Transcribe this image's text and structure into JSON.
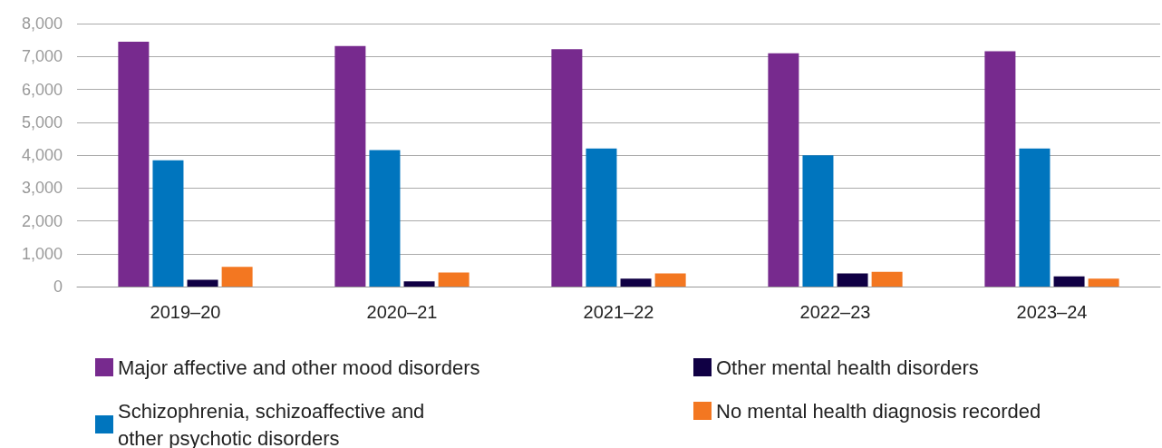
{
  "chart_data": {
    "type": "bar",
    "categories": [
      "2019–20",
      "2020–21",
      "2021–22",
      "2022–23",
      "2023–24"
    ],
    "series": [
      {
        "name": "Major affective and other mood disorders",
        "color": "#772a8e",
        "values": [
          7450,
          7320,
          7220,
          7100,
          7160
        ]
      },
      {
        "name": "Schizophrenia, schizoaffective and\nother psychotic disorders",
        "color": "#0075be",
        "values": [
          3840,
          4150,
          4200,
          3990,
          4200
        ]
      },
      {
        "name": "Other mental health disorders",
        "color": "#100044",
        "values": [
          210,
          160,
          240,
          400,
          310
        ]
      },
      {
        "name": "No mental health diagnosis recorded",
        "color": "#f37721",
        "values": [
          600,
          430,
          400,
          450,
          240
        ]
      }
    ],
    "ylim": [
      0,
      8000
    ],
    "yticks": [
      0,
      {
        "value": 1000,
        "label": "1,000"
      },
      {
        "value": 2000,
        "label": "2,000"
      },
      {
        "value": 3000,
        "label": "3,000"
      },
      {
        "value": 4000,
        "label": "4,000"
      },
      {
        "value": 5000,
        "label": "5,000"
      },
      {
        "value": 6000,
        "label": "6,000"
      },
      {
        "value": 7000,
        "label": "7,000"
      },
      {
        "value": 8000,
        "label": "8,000"
      }
    ],
    "grid": "y",
    "legend": "bottom"
  }
}
